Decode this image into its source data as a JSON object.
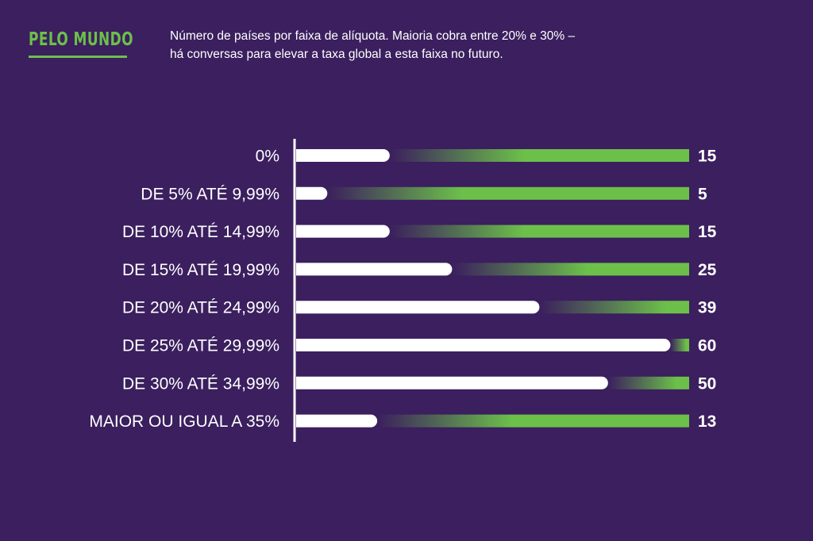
{
  "header": {
    "brand": "PELO MUNDO",
    "subtitle_line1": "Número de países por faixa de alíquota. Maioria cobra entre 20% e 30% –",
    "subtitle_line2": "há conversas para elevar a taxa global a esta faixa no futuro."
  },
  "colors": {
    "background": "#3b1f5e",
    "accent_green": "#6cc04a",
    "bar_white": "#ffffff"
  },
  "chart_data": {
    "type": "bar",
    "orientation": "horizontal",
    "categories": [
      "0%",
      "DE 5% ATÉ 9,99%",
      "DE 10% ATÉ 14,99%",
      "DE 15% ATÉ 19,99%",
      "DE 20% ATÉ 24,99%",
      "DE 25% ATÉ 29,99%",
      "DE 30% ATÉ 34,99%",
      "MAIOR OU IGUAL A 35%"
    ],
    "values": [
      15,
      5,
      15,
      25,
      39,
      60,
      50,
      13
    ],
    "data_labels": [
      "15",
      "5",
      "15",
      "25",
      "39",
      "60",
      "50",
      "13"
    ],
    "xlim": [
      0,
      63
    ],
    "grid": false,
    "legend": "none"
  }
}
